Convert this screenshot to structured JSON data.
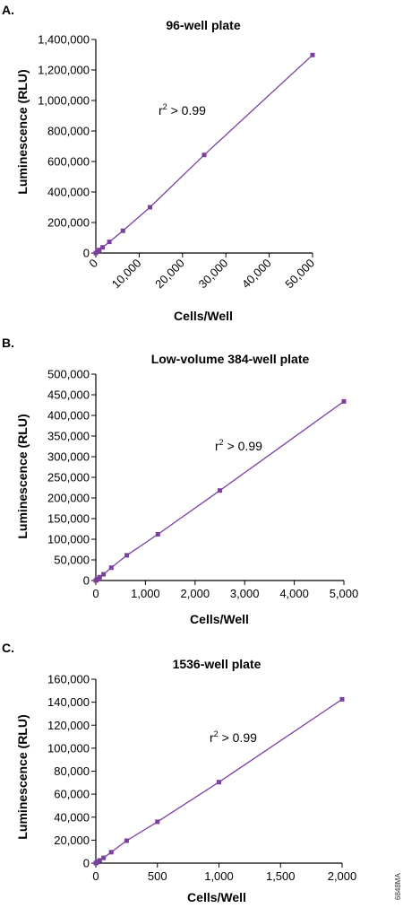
{
  "figure_code": "6848MA",
  "chart_data": [
    {
      "panel": "A.",
      "type": "line",
      "title": "96-well plate",
      "xlabel": "Cells/Well",
      "ylabel": "Luminescence (RLU)",
      "xlim": [
        0,
        50000
      ],
      "ylim": [
        0,
        1400000
      ],
      "xticks": [
        0,
        10000,
        20000,
        30000,
        40000,
        50000
      ],
      "xtick_labels": [
        "0",
        "10,000",
        "20,000",
        "30,000",
        "40,000",
        "50,000"
      ],
      "yticks": [
        0,
        200000,
        400000,
        600000,
        800000,
        1000000,
        1200000,
        1400000
      ],
      "ytick_labels": [
        "0",
        "200,000",
        "400,000",
        "600,000",
        "800,000",
        "1,000,000",
        "1,200,000",
        "1,400,000"
      ],
      "x_tick_rotation": -45,
      "annotation_r": "r",
      "annotation_exp": "2",
      "annotation_rest": " > 0.99",
      "grid": false,
      "series_color": "#7b3fa0",
      "marker_color": "#7b3fa0",
      "x": [
        0,
        390,
        780,
        1560,
        3125,
        6250,
        12500,
        25000,
        50000
      ],
      "y": [
        0,
        10000,
        20000,
        37000,
        73000,
        146000,
        300000,
        643000,
        1298000
      ]
    },
    {
      "panel": "B.",
      "type": "line",
      "title": "Low-volume 384-well plate",
      "xlabel": "Cells/Well",
      "ylabel": "Luminescence (RLU)",
      "xlim": [
        0,
        5000
      ],
      "ylim": [
        0,
        500000
      ],
      "xticks": [
        0,
        1000,
        2000,
        3000,
        4000,
        5000
      ],
      "xtick_labels": [
        "0",
        "1,000",
        "2,000",
        "3,000",
        "4,000",
        "5,000"
      ],
      "yticks": [
        0,
        50000,
        100000,
        150000,
        200000,
        250000,
        300000,
        350000,
        400000,
        450000,
        500000
      ],
      "ytick_labels": [
        "0",
        "50,000",
        "100,000",
        "150,000",
        "200,000",
        "250,000",
        "300,000",
        "350,000",
        "400,000",
        "450,000",
        "500,000"
      ],
      "x_tick_rotation": 0,
      "annotation_r": "r",
      "annotation_exp": "2",
      "annotation_rest": " > 0.99",
      "grid": false,
      "series_color": "#7b3fa0",
      "marker_color": "#7b3fa0",
      "x": [
        0,
        20,
        39,
        78,
        156,
        313,
        625,
        1250,
        2500,
        5000
      ],
      "y": [
        0,
        2000,
        4000,
        8000,
        15000,
        31000,
        61000,
        112000,
        218000,
        434000
      ]
    },
    {
      "panel": "C.",
      "type": "line",
      "title": "1536-well plate",
      "xlabel": "Cells/Well",
      "ylabel": "Luminescence (RLU)",
      "xlim": [
        0,
        2000
      ],
      "ylim": [
        0,
        160000
      ],
      "xticks": [
        0,
        500,
        1000,
        1500,
        2000
      ],
      "xtick_labels": [
        "0",
        "500",
        "1,000",
        "1,500",
        "2,000"
      ],
      "yticks": [
        0,
        20000,
        40000,
        60000,
        80000,
        100000,
        120000,
        140000,
        160000
      ],
      "ytick_labels": [
        "0",
        "20,000",
        "40,000",
        "60,000",
        "80,000",
        "100,000",
        "120,000",
        "140,000",
        "160,000"
      ],
      "x_tick_rotation": 0,
      "annotation_r": "r",
      "annotation_exp": "2",
      "annotation_rest": " > 0.99",
      "grid": false,
      "series_color": "#7b3fa0",
      "marker_color": "#7b3fa0",
      "x": [
        0,
        8,
        16,
        31,
        63,
        125,
        250,
        500,
        1000,
        2000
      ],
      "y": [
        0,
        600,
        1200,
        2400,
        4600,
        9500,
        19500,
        36000,
        70500,
        142500
      ]
    }
  ]
}
